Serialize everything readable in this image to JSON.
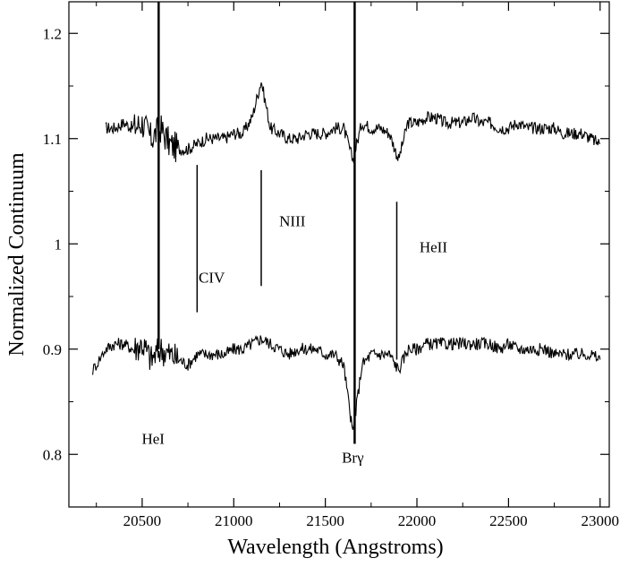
{
  "chart_data": {
    "type": "line",
    "title": "",
    "xlabel": "Wavelength (Angstroms)",
    "ylabel": "Normalized Continuum",
    "xlim": [
      20100,
      23050
    ],
    "ylim": [
      0.75,
      1.23
    ],
    "x_ticks": [
      20500,
      21000,
      21500,
      22000,
      22500,
      23000
    ],
    "x_tick_labels": [
      "20500",
      "21000",
      "21500",
      "22000",
      "22500",
      "23000"
    ],
    "y_ticks": [
      0.8,
      0.9,
      1.0,
      1.1,
      1.2
    ],
    "y_tick_labels": [
      "0.8",
      "0.9",
      "1",
      "1.1",
      "1.2"
    ],
    "grid": false,
    "legend": "none",
    "line_color": "#000000",
    "series": [
      {
        "x": [
          20300,
          20350,
          20400,
          20450,
          20500,
          20550,
          20600,
          20650,
          20700,
          20750,
          20800,
          20850,
          20900,
          20950,
          21000,
          21050,
          21100,
          21150,
          21200,
          21250,
          21300,
          21350,
          21400,
          21450,
          21500,
          21550,
          21600,
          21650,
          21700,
          21750,
          21800,
          21850,
          21900,
          21950,
          22000,
          22050,
          22100,
          22150,
          22200,
          22250,
          22300,
          22350,
          22400,
          22450,
          22500,
          22550,
          22600,
          22650,
          22700,
          22750,
          22800,
          22850,
          22900,
          22950,
          23000
        ],
        "values": [
          1.11,
          1.11,
          1.115,
          1.11,
          1.115,
          1.1,
          1.11,
          1.095,
          1.09,
          1.09,
          1.095,
          1.1,
          1.1,
          1.1,
          1.105,
          1.105,
          1.12,
          1.155,
          1.11,
          1.105,
          1.1,
          1.1,
          1.105,
          1.105,
          1.105,
          1.11,
          1.11,
          1.08,
          1.115,
          1.11,
          1.11,
          1.105,
          1.08,
          1.115,
          1.115,
          1.12,
          1.12,
          1.115,
          1.115,
          1.115,
          1.12,
          1.115,
          1.115,
          1.11,
          1.11,
          1.115,
          1.11,
          1.11,
          1.11,
          1.11,
          1.105,
          1.105,
          1.105,
          1.1,
          1.095
        ]
      },
      {
        "x": [
          20230,
          20300,
          20350,
          20400,
          20450,
          20500,
          20550,
          20600,
          20650,
          20700,
          20750,
          20800,
          20850,
          20900,
          20950,
          21000,
          21050,
          21100,
          21150,
          21200,
          21250,
          21300,
          21350,
          21400,
          21450,
          21500,
          21550,
          21600,
          21650,
          21700,
          21750,
          21800,
          21850,
          21900,
          21950,
          22000,
          22050,
          22100,
          22150,
          22200,
          22250,
          22300,
          22350,
          22400,
          22450,
          22500,
          22550,
          22600,
          22650,
          22700,
          22750,
          22800,
          22850,
          22900,
          22950,
          23000
        ],
        "values": [
          0.88,
          0.9,
          0.905,
          0.905,
          0.9,
          0.905,
          0.89,
          0.9,
          0.895,
          0.89,
          0.885,
          0.895,
          0.895,
          0.895,
          0.895,
          0.9,
          0.9,
          0.905,
          0.91,
          0.905,
          0.9,
          0.895,
          0.9,
          0.9,
          0.9,
          0.895,
          0.895,
          0.885,
          0.82,
          0.885,
          0.895,
          0.895,
          0.895,
          0.88,
          0.9,
          0.9,
          0.905,
          0.905,
          0.905,
          0.905,
          0.905,
          0.905,
          0.905,
          0.905,
          0.9,
          0.905,
          0.9,
          0.9,
          0.9,
          0.9,
          0.895,
          0.895,
          0.895,
          0.895,
          0.895,
          0.89
        ]
      }
    ],
    "spikes": [
      {
        "x": 20590,
        "y_from": 0.9,
        "y_to": 1.23
      },
      {
        "x": 21660,
        "y_from": 0.81,
        "y_to": 1.23
      }
    ],
    "annotations": [
      {
        "label": "HeI",
        "x": 20560,
        "y": 0.81
      },
      {
        "label": "CIV",
        "x": 20880,
        "y": 0.963
      },
      {
        "label": "NIII",
        "x": 21320,
        "y": 1.017
      },
      {
        "label": "Brγ",
        "x": 21650,
        "y": 0.792
      },
      {
        "label": "HeII",
        "x": 22090,
        "y": 0.992
      }
    ],
    "marker_lines": [
      {
        "x": 20800,
        "y_from": 0.935,
        "y_to": 1.075
      },
      {
        "x": 21150,
        "y_from": 0.96,
        "y_to": 1.07
      },
      {
        "x": 21890,
        "y_from": 0.89,
        "y_to": 1.04
      }
    ]
  }
}
